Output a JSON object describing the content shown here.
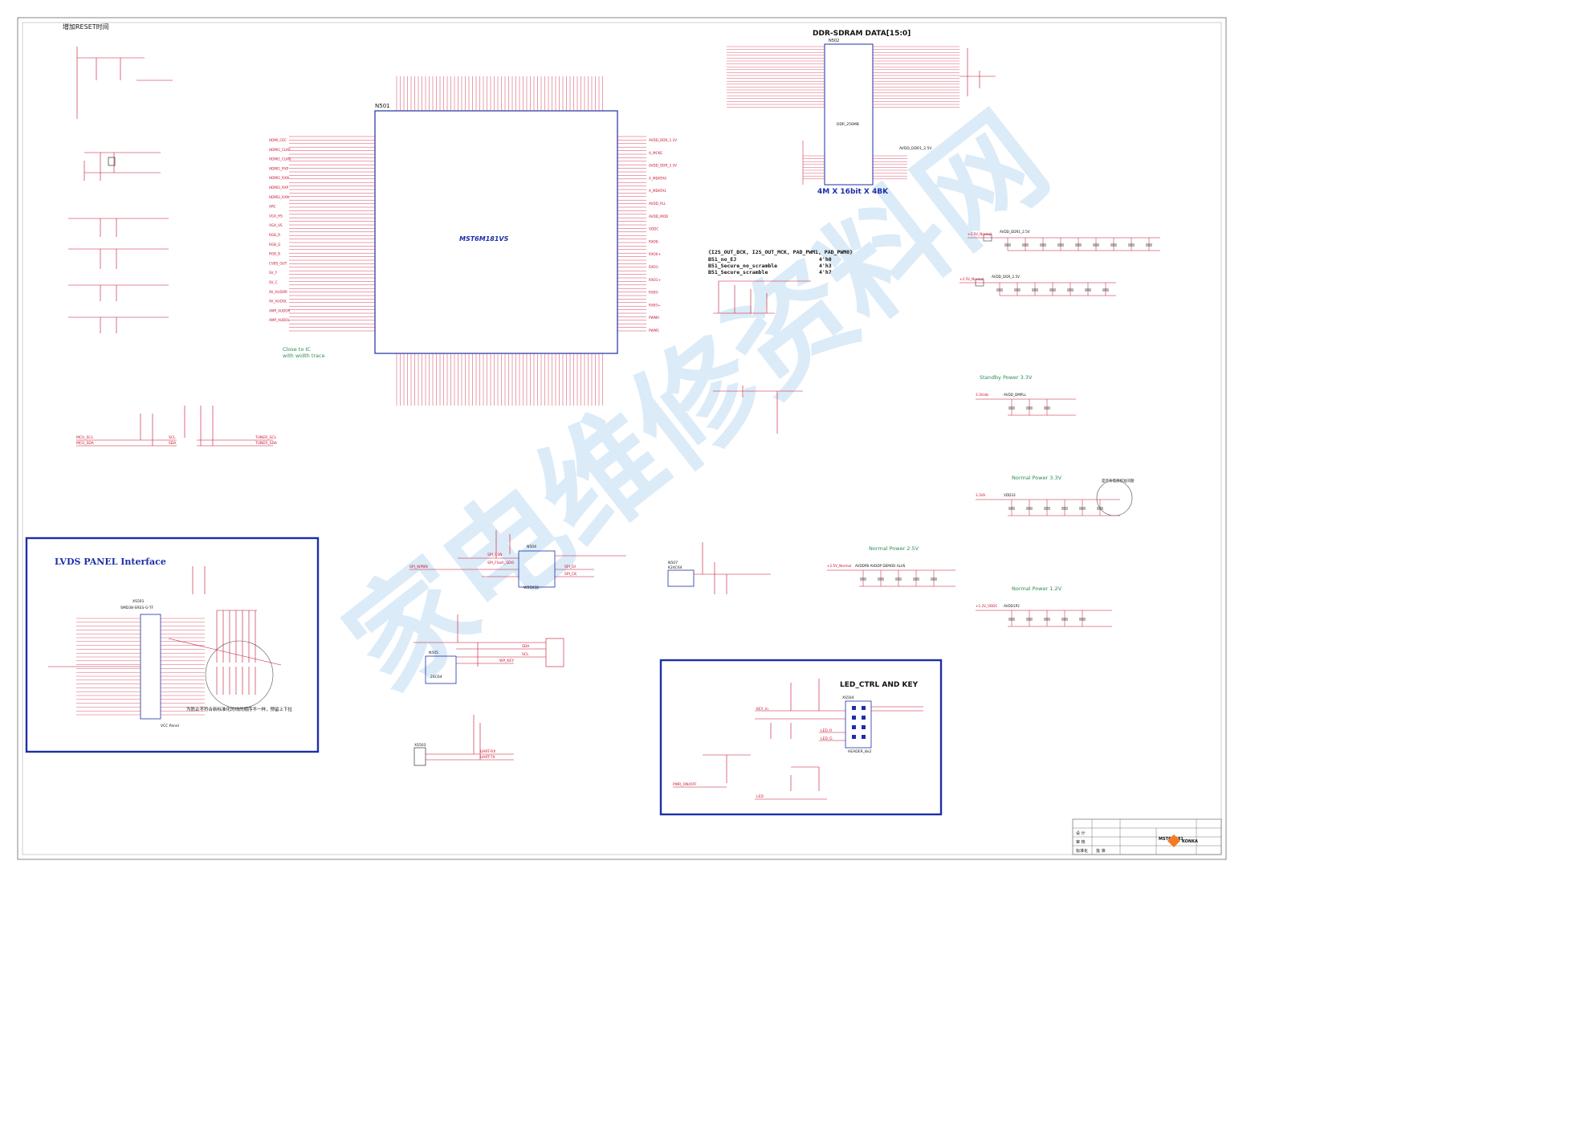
{
  "top_note": "增加RESET时间",
  "main_ic": {
    "ref": "N501",
    "part": "MST6M181VS"
  },
  "ddr": {
    "title": "DDR-SDRAM DATA[15:0]",
    "ref": "N502",
    "part": "DDR_256MB",
    "size_label": "4M X 16bit X 4BK",
    "vddr": "AVDD_DDR1_2.5V"
  },
  "lvds": {
    "title": "LVDS PANEL Interface",
    "connector_ref": "XS501",
    "connector_part": "SMD38-SRES-G-TF",
    "vcc": "VCC Panel",
    "note": "为防止不符合新标准化的线的顺序不一样，预留上下拉"
  },
  "led": {
    "title": "LED_CTRL AND KEY",
    "header": "HEADER_8x2",
    "header_ref": "XS504",
    "labels": [
      "KEY_in",
      "LED_R",
      "LED_G",
      "PWR_ON/OFF",
      "LED"
    ]
  },
  "bootstrap": {
    "title": "{I2S_OUT_BCK, I2S_OUT_MCK, PAD_PWM1, PAD_PWM0}",
    "rows": [
      {
        "name": "B51_no_EJ",
        "val": "4'h0"
      },
      {
        "name": "B51_Secure_no_scramble",
        "val": "4'h3"
      },
      {
        "name": "B51_Secure_scramble",
        "val": "4'h7"
      }
    ]
  },
  "power_blocks": [
    {
      "title": "Standby Power 3.3V",
      "src": "3.3Vstb",
      "net": "AVDD_DMPLL"
    },
    {
      "title": "Normal Power 3.3V",
      "src": "3.3VA",
      "net": "VDD33",
      "note": "是否有电源校准问题"
    },
    {
      "title": "Normal Power 2.5V",
      "src": "+2.5V_Normal",
      "net": "AVDDPB AVDDP DEMOD ALUS"
    },
    {
      "title": "Normal Power 1.2V",
      "src": "+1.2V_VDDC",
      "net": "AVDD1P2"
    }
  ],
  "ddr_power": [
    {
      "label": "+2.5V_Normal",
      "net": "AVDD_DDR1_2.5V",
      "ref": "L502"
    },
    {
      "label": "+2.5V_Normal",
      "net": "AVDD_DDR_2.5V",
      "ref": "L504"
    }
  ],
  "flash": {
    "ref": "N504",
    "part": "W25X32",
    "labels": [
      "SPI_CSN",
      "SPI_Flash_SDO",
      "SPI_WPBN",
      "SPI_DI",
      "SPI_CK"
    ]
  },
  "eeprom": {
    "ref": "N505",
    "part": "24C64",
    "labels": [
      "SDA",
      "SCL",
      "WP_KEY"
    ]
  },
  "ic_u507": {
    "ref": "N507",
    "part": "K24C64"
  },
  "uart": {
    "ref": "XS503",
    "labels": [
      "UART-RX",
      "UART-TX"
    ]
  },
  "i2c_pull": {
    "labels": [
      "MCU_SCL",
      "MCU_SDA",
      "SCL",
      "SDA",
      "TUNER_SCL",
      "TUNER_SDA"
    ]
  },
  "ic_note": "Close to IC\nwith width trace",
  "left_nets": [
    "HDMI_CEC",
    "HDMI1_CLKP",
    "HDMI1_CLKN",
    "HDMI1_RXP",
    "HDMI1_RXN",
    "HDMI2_RXP",
    "HDMI2_RXN",
    "ARC",
    "VGA_HS",
    "VGA_VS",
    "RGB_R",
    "RGB_G",
    "RGB_B",
    "CVBS_OUT",
    "SV_Y",
    "SV_C",
    "AV_AUDOR",
    "AV_AUDOL",
    "AMP_AUDOR",
    "AMP_AUDOL"
  ],
  "right_nets": [
    "AVDD_DDR_1.2V",
    "A_MCKE",
    "AVDD_DDR_2.5V",
    "A_MDATA0",
    "A_MDATA1",
    "AVDD_PLL",
    "AVDD_MOD",
    "VDDC",
    "RXO0-",
    "RXO0+",
    "RXO1-",
    "RXO1+",
    "RXE0-",
    "RXE0+",
    "PWM0",
    "PWM1"
  ],
  "title_block": {
    "company": "KONKA",
    "drawing": "MST6M181",
    "rows": [
      "设  计",
      "审  核",
      "标准化",
      "批  准"
    ]
  },
  "watermark": "家电维修资料网",
  "colors": {
    "wire": "#c8102e",
    "ink": "#111111",
    "box": "#1c2fa8",
    "note": "#2e8b57",
    "watermark": "#9cc9ef"
  }
}
